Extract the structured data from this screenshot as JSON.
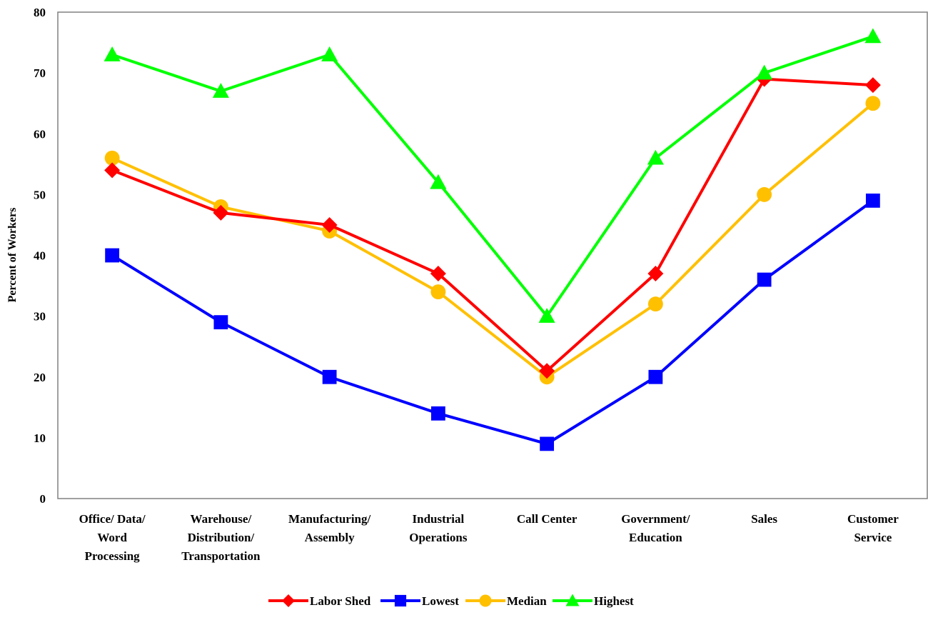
{
  "chart_data": {
    "type": "line",
    "title": "",
    "xlabel": "",
    "ylabel": "Percent of Workers",
    "ylim": [
      0,
      80
    ],
    "yticks": [
      0,
      10,
      20,
      30,
      40,
      50,
      60,
      70,
      80
    ],
    "grid": false,
    "legend_position": "bottom",
    "categories": [
      [
        "Office/ Data/",
        "Word",
        "Processing"
      ],
      [
        "Warehouse/",
        "Distribution/",
        "Transportation"
      ],
      [
        "Manufacturing/",
        "Assembly"
      ],
      [
        "Industrial",
        "Operations"
      ],
      [
        "Call Center"
      ],
      [
        "Government/",
        "Education"
      ],
      [
        "Sales"
      ],
      [
        "Customer",
        "Service"
      ]
    ],
    "series": [
      {
        "name": "Labor Shed",
        "color": "#ff0000",
        "marker": "diamond",
        "values": [
          54,
          47,
          45,
          37,
          21,
          37,
          69,
          68
        ]
      },
      {
        "name": "Lowest",
        "color": "#0000ff",
        "marker": "square",
        "values": [
          40,
          29,
          20,
          14,
          9,
          20,
          36,
          49
        ]
      },
      {
        "name": "Median",
        "color": "#ffc000",
        "marker": "circle",
        "values": [
          56,
          48,
          44,
          34,
          20,
          32,
          50,
          65
        ]
      },
      {
        "name": "Highest",
        "color": "#00ff00",
        "marker": "triangle",
        "values": [
          73,
          67,
          73,
          52,
          30,
          56,
          70,
          76
        ]
      }
    ]
  }
}
